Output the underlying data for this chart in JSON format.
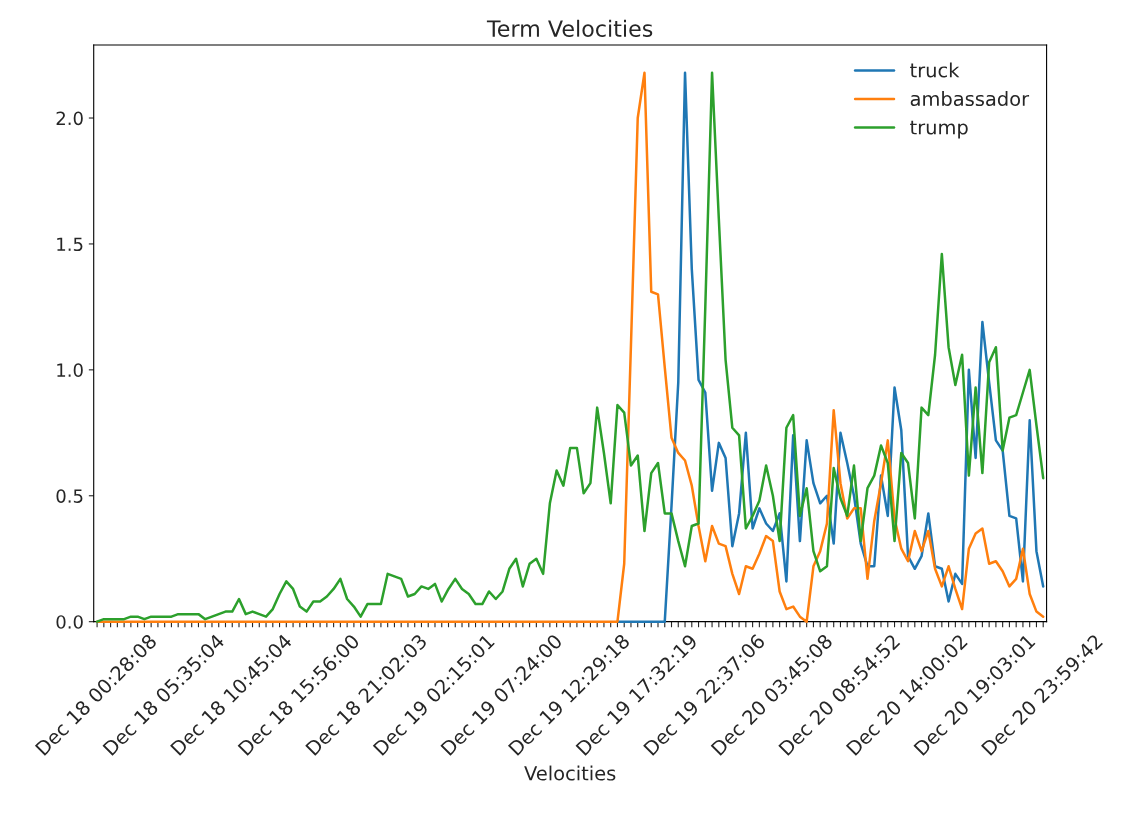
{
  "chart_data": {
    "type": "line",
    "title": "Term Velocities",
    "xlabel": "Velocities",
    "categories": [
      "Dec 18 00:28:08",
      null,
      null,
      null,
      null,
      null,
      null,
      null,
      null,
      null,
      "Dec 18 05:35:04",
      null,
      null,
      null,
      null,
      null,
      null,
      null,
      null,
      null,
      "Dec 18 10:45:04",
      null,
      null,
      null,
      null,
      null,
      null,
      null,
      null,
      null,
      "Dec 18 15:56:00",
      null,
      null,
      null,
      null,
      null,
      null,
      null,
      null,
      null,
      "Dec 18 21:02:03",
      null,
      null,
      null,
      null,
      null,
      null,
      null,
      null,
      null,
      "Dec 19 02:15:01",
      null,
      null,
      null,
      null,
      null,
      null,
      null,
      null,
      null,
      "Dec 19 07:24:00",
      null,
      null,
      null,
      null,
      null,
      null,
      null,
      null,
      null,
      "Dec 19 12:29:18",
      null,
      null,
      null,
      null,
      null,
      null,
      null,
      null,
      null,
      "Dec 19 17:32:19",
      null,
      null,
      null,
      null,
      null,
      null,
      null,
      null,
      null,
      "Dec 19 22:37:06",
      null,
      null,
      null,
      null,
      null,
      null,
      null,
      null,
      null,
      "Dec 20 03:45:08",
      null,
      null,
      null,
      null,
      null,
      null,
      null,
      null,
      null,
      "Dec 20 08:54:52",
      null,
      null,
      null,
      null,
      null,
      null,
      null,
      null,
      null,
      "Dec 20 14:00:02",
      null,
      null,
      null,
      null,
      null,
      null,
      null,
      null,
      null,
      "Dec 20 19:03:01",
      null,
      null,
      null,
      null,
      null,
      null,
      null,
      null,
      null,
      "Dec 20 23:59:42"
    ],
    "series": [
      {
        "name": "truck",
        "color": "#1f77b4",
        "values": [
          null,
          null,
          null,
          null,
          null,
          null,
          null,
          null,
          null,
          null,
          null,
          null,
          null,
          null,
          null,
          null,
          null,
          null,
          null,
          null,
          null,
          null,
          null,
          null,
          null,
          null,
          null,
          null,
          null,
          null,
          null,
          null,
          null,
          null,
          null,
          null,
          null,
          null,
          null,
          null,
          null,
          null,
          null,
          null,
          null,
          null,
          null,
          null,
          null,
          null,
          null,
          null,
          null,
          null,
          null,
          null,
          null,
          null,
          null,
          null,
          null,
          null,
          null,
          null,
          null,
          null,
          null,
          null,
          null,
          null,
          null,
          null,
          null,
          null,
          null,
          null,
          null,
          0,
          0,
          0,
          0,
          0,
          0,
          0,
          0,
          0.46,
          0.95,
          2.18,
          1.4,
          0.96,
          0.91,
          0.52,
          0.71,
          0.65,
          0.3,
          0.43,
          0.75,
          0.37,
          0.45,
          0.39,
          0.36,
          0.43,
          0.16,
          0.74,
          0.32,
          0.72,
          0.55,
          0.47,
          0.5,
          0.31,
          0.75,
          0.63,
          0.5,
          0.31,
          0.22,
          0.22,
          0.58,
          0.42,
          0.93,
          0.76,
          0.26,
          0.21,
          0.26,
          0.43,
          0.22,
          0.21,
          0.08,
          0.19,
          0.15,
          1.0,
          0.65,
          1.19,
          0.95,
          0.72,
          0.68,
          0.42,
          0.41,
          0.16,
          0.8,
          0.28,
          0.14
        ]
      },
      {
        "name": "ambassador",
        "color": "#ff7f0e",
        "values": [
          0,
          0,
          0,
          0,
          0,
          0,
          0,
          0,
          0,
          0,
          0,
          0,
          0,
          0,
          0,
          0,
          0,
          0,
          0,
          0,
          0,
          0,
          0,
          0,
          0,
          0,
          0,
          0,
          0,
          0,
          0,
          0,
          0,
          0,
          0,
          0,
          0,
          0,
          0,
          0,
          0,
          0,
          0,
          0,
          0,
          0,
          0,
          0,
          0,
          0,
          0,
          0,
          0,
          0,
          0,
          0,
          0,
          0,
          0,
          0,
          0,
          0,
          0,
          0,
          0,
          0,
          0,
          0,
          0,
          0,
          0,
          0,
          0,
          0,
          0,
          0,
          0,
          0,
          0.23,
          1.1,
          2.0,
          2.18,
          1.31,
          1.3,
          1.01,
          0.73,
          0.67,
          0.64,
          0.54,
          0.38,
          0.24,
          0.38,
          0.31,
          0.3,
          0.19,
          0.11,
          0.22,
          0.21,
          0.27,
          0.34,
          0.32,
          0.12,
          0.05,
          0.06,
          0.02,
          0.0,
          0.22,
          0.28,
          0.39,
          0.84,
          0.55,
          0.41,
          0.45,
          0.45,
          0.17,
          0.4,
          0.55,
          0.72,
          0.41,
          0.29,
          0.24,
          0.36,
          0.28,
          0.36,
          0.21,
          0.14,
          0.22,
          0.13,
          0.05,
          0.29,
          0.35,
          0.37,
          0.23,
          0.24,
          0.2,
          0.14,
          0.17,
          0.29,
          0.11,
          0.04,
          0.02
        ]
      },
      {
        "name": "trump",
        "color": "#2ca02c",
        "values": [
          0.0,
          0.01,
          0.01,
          0.01,
          0.01,
          0.02,
          0.02,
          0.01,
          0.02,
          0.02,
          0.02,
          0.02,
          0.03,
          0.03,
          0.03,
          0.03,
          0.01,
          0.02,
          0.03,
          0.04,
          0.04,
          0.09,
          0.03,
          0.04,
          0.03,
          0.02,
          0.05,
          0.11,
          0.16,
          0.13,
          0.06,
          0.04,
          0.08,
          0.08,
          0.1,
          0.13,
          0.17,
          0.09,
          0.06,
          0.02,
          0.07,
          0.07,
          0.07,
          0.19,
          0.18,
          0.17,
          0.1,
          0.11,
          0.14,
          0.13,
          0.15,
          0.08,
          0.13,
          0.17,
          0.13,
          0.11,
          0.07,
          0.07,
          0.12,
          0.09,
          0.12,
          0.21,
          0.25,
          0.14,
          0.23,
          0.25,
          0.19,
          0.47,
          0.6,
          0.54,
          0.69,
          0.69,
          0.51,
          0.55,
          0.85,
          0.67,
          0.47,
          0.86,
          0.83,
          0.62,
          0.66,
          0.36,
          0.59,
          0.63,
          0.43,
          0.43,
          0.32,
          0.22,
          0.38,
          0.39,
          1.25,
          2.18,
          1.6,
          1.04,
          0.77,
          0.74,
          0.37,
          0.42,
          0.48,
          0.62,
          0.5,
          0.32,
          0.77,
          0.82,
          0.42,
          0.53,
          0.28,
          0.2,
          0.22,
          0.61,
          0.49,
          0.42,
          0.62,
          0.32,
          0.53,
          0.58,
          0.7,
          0.63,
          0.32,
          0.67,
          0.63,
          0.41,
          0.85,
          0.82,
          1.06,
          1.46,
          1.09,
          0.94,
          1.06,
          0.58,
          0.93,
          0.59,
          1.03,
          1.09,
          0.68,
          0.81,
          0.82,
          0.91,
          1.0,
          0.78,
          0.57
        ]
      }
    ],
    "ylim": [
      0,
      2.29
    ],
    "yticks": [
      {
        "value": 0,
        "label": "0.0"
      },
      {
        "value": 0.5,
        "label": "0.5"
      },
      {
        "value": 1,
        "label": "1.0"
      },
      {
        "value": 1.5,
        "label": "1.5"
      },
      {
        "value": 2,
        "label": "2.0"
      }
    ],
    "grid": false,
    "legend": "top right",
    "line_style": "solid",
    "marker": "none"
  }
}
